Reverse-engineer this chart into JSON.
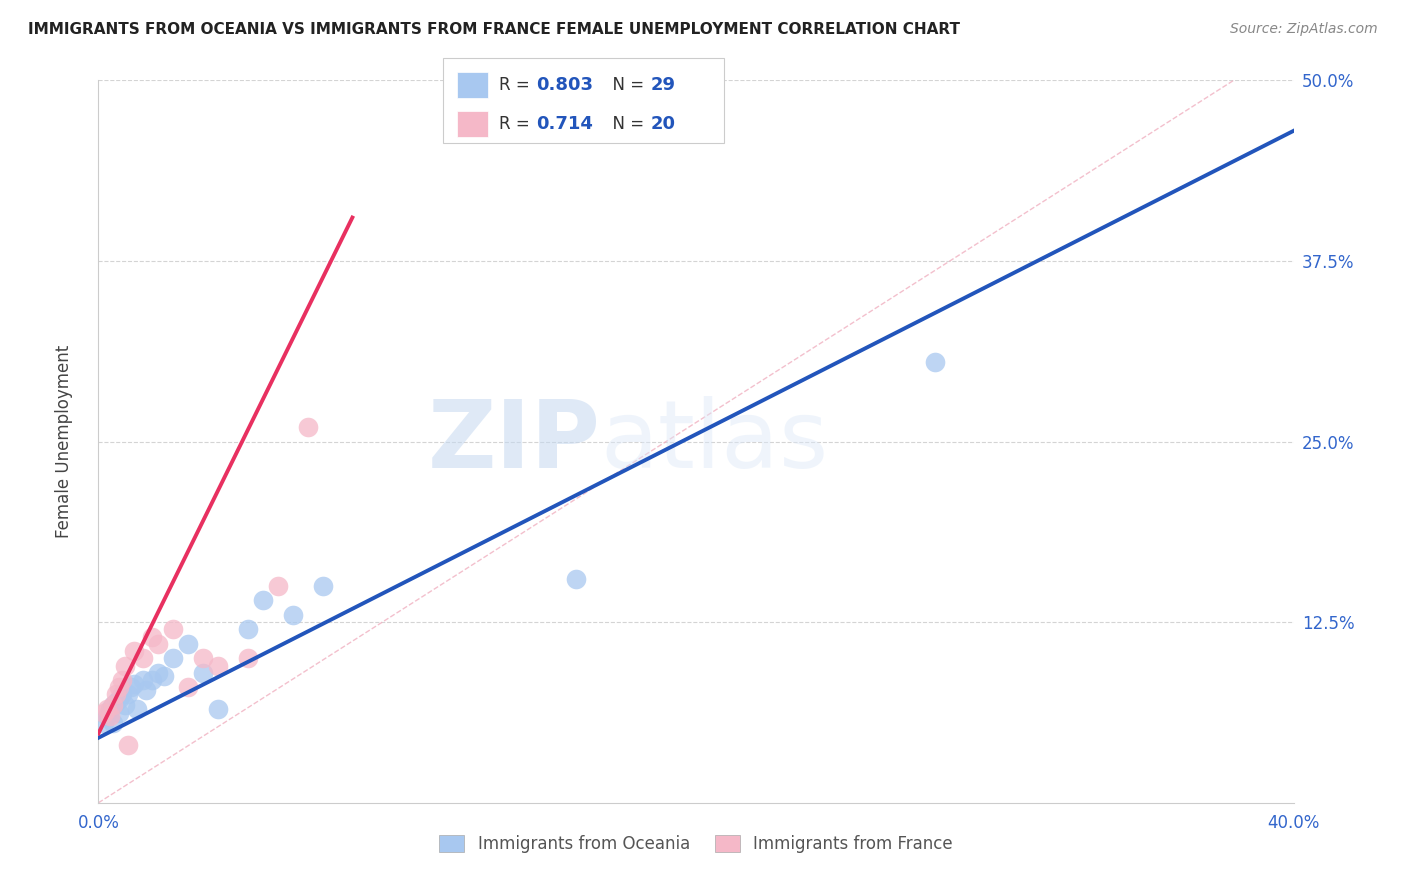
{
  "title": "IMMIGRANTS FROM OCEANIA VS IMMIGRANTS FROM FRANCE FEMALE UNEMPLOYMENT CORRELATION CHART",
  "source": "Source: ZipAtlas.com",
  "ylabel": "Female Unemployment",
  "xlim": [
    0.0,
    0.4
  ],
  "ylim": [
    0.0,
    0.5
  ],
  "xticks": [
    0.0,
    0.1,
    0.2,
    0.3,
    0.4
  ],
  "xticklabels": [
    "0.0%",
    "",
    "",
    "",
    "40.0%"
  ],
  "yticks": [
    0.0,
    0.125,
    0.25,
    0.375,
    0.5
  ],
  "yticklabels_right": [
    "",
    "12.5%",
    "25.0%",
    "37.5%",
    "50.0%"
  ],
  "grid_color": "#d0d0d0",
  "background_color": "#ffffff",
  "watermark_zip": "ZIP",
  "watermark_atlas": "atlas",
  "oceania_color": "#a8c8f0",
  "france_color": "#f5b8c8",
  "trend_oceania_color": "#2255bb",
  "trend_france_color": "#e83060",
  "ref_line_color": "#f0b0c0",
  "oceania_x": [
    0.002,
    0.003,
    0.004,
    0.005,
    0.005,
    0.006,
    0.007,
    0.007,
    0.008,
    0.009,
    0.01,
    0.011,
    0.012,
    0.013,
    0.015,
    0.016,
    0.018,
    0.02,
    0.022,
    0.025,
    0.03,
    0.035,
    0.04,
    0.05,
    0.055,
    0.065,
    0.075,
    0.16,
    0.28
  ],
  "oceania_y": [
    0.055,
    0.06,
    0.065,
    0.068,
    0.055,
    0.07,
    0.072,
    0.062,
    0.075,
    0.068,
    0.075,
    0.08,
    0.082,
    0.065,
    0.085,
    0.078,
    0.085,
    0.09,
    0.088,
    0.1,
    0.11,
    0.09,
    0.065,
    0.12,
    0.14,
    0.13,
    0.15,
    0.155,
    0.305
  ],
  "france_x": [
    0.002,
    0.003,
    0.004,
    0.005,
    0.006,
    0.007,
    0.008,
    0.009,
    0.01,
    0.012,
    0.015,
    0.018,
    0.02,
    0.025,
    0.03,
    0.035,
    0.04,
    0.05,
    0.06,
    0.07
  ],
  "france_y": [
    0.062,
    0.065,
    0.06,
    0.068,
    0.075,
    0.08,
    0.085,
    0.095,
    0.04,
    0.105,
    0.1,
    0.115,
    0.11,
    0.12,
    0.08,
    0.1,
    0.095,
    0.1,
    0.15,
    0.26
  ],
  "trend_oceania_slope": 1.05,
  "trend_oceania_intercept": 0.045,
  "trend_france_slope": 4.2,
  "trend_france_intercept": 0.048,
  "legend_r1": "0.803",
  "legend_n1": "29",
  "legend_r2": "0.714",
  "legend_n2": "20"
}
